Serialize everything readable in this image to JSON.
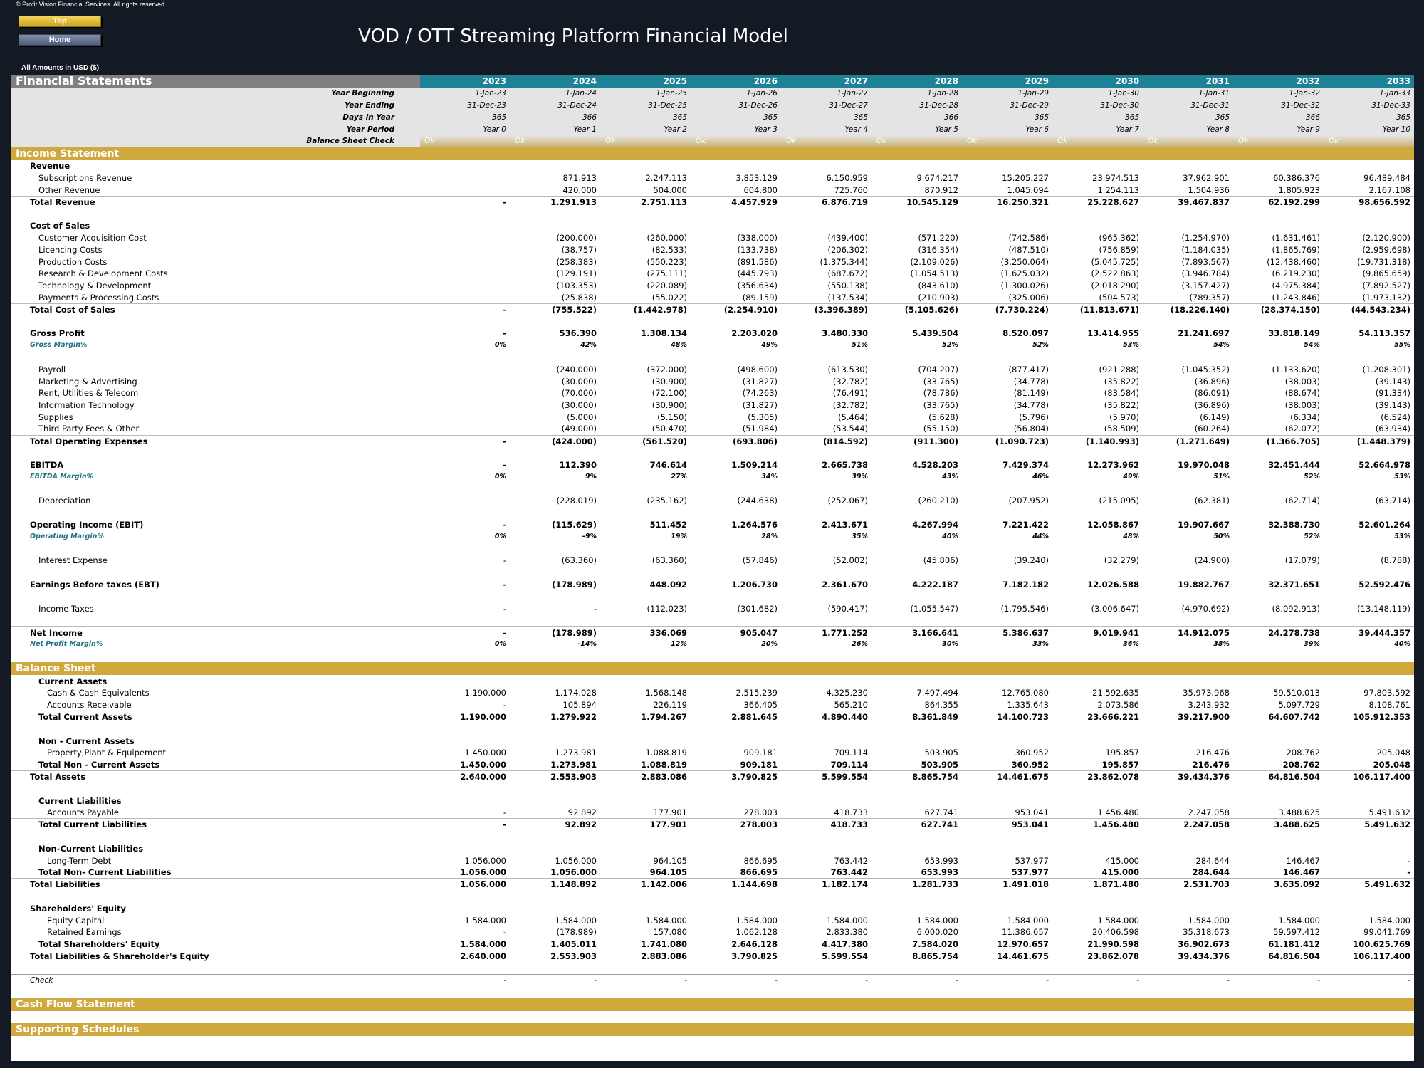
{
  "copyright": "© Profit Vision Financial Services. All rights reserved.",
  "nav": {
    "top": "Top",
    "home": "Home"
  },
  "title": "VOD / OTT Streaming Platform Financial Model",
  "amounts_note": "All Amounts in  USD ($)",
  "sheet_title": "Financial Statements",
  "years": [
    "2023",
    "2024",
    "2025",
    "2026",
    "2027",
    "2028",
    "2029",
    "2030",
    "2031",
    "2032",
    "2033"
  ],
  "meta": {
    "year_beginning": {
      "label": "Year Beginning",
      "values": [
        "1-Jan-23",
        "1-Jan-24",
        "1-Jan-25",
        "1-Jan-26",
        "1-Jan-27",
        "1-Jan-28",
        "1-Jan-29",
        "1-Jan-30",
        "1-Jan-31",
        "1-Jan-32",
        "1-Jan-33"
      ]
    },
    "year_ending": {
      "label": "Year Ending",
      "values": [
        "31-Dec-23",
        "31-Dec-24",
        "31-Dec-25",
        "31-Dec-26",
        "31-Dec-27",
        "31-Dec-28",
        "31-Dec-29",
        "31-Dec-30",
        "31-Dec-31",
        "31-Dec-32",
        "31-Dec-33"
      ]
    },
    "days_in_year": {
      "label": "Days in Year",
      "values": [
        "365",
        "366",
        "365",
        "365",
        "365",
        "366",
        "365",
        "365",
        "365",
        "366",
        "365"
      ]
    },
    "year_period": {
      "label": "Year Period",
      "values": [
        "Year 0",
        "Year 1",
        "Year 2",
        "Year 3",
        "Year 4",
        "Year 5",
        "Year 6",
        "Year 7",
        "Year 8",
        "Year 9",
        "Year 10"
      ]
    },
    "balance_check": {
      "label": "Balance Sheet Check",
      "values": [
        "Ok",
        "Ok",
        "Ok",
        "Ok",
        "Ok",
        "Ok",
        "Ok",
        "Ok",
        "Ok",
        "Ok",
        "Ok"
      ]
    }
  },
  "rows": [
    {
      "kind": "section",
      "label": "Income Statement"
    },
    {
      "kind": "group",
      "label": "Revenue"
    },
    {
      "kind": "item",
      "label": "Subscriptions Revenue",
      "values": [
        "",
        "871.913",
        "2.247.113",
        "3.853.129",
        "6.150.959",
        "9.674.217",
        "15.205.227",
        "23.974.513",
        "37.962.901",
        "60.386.376",
        "96.489.484"
      ]
    },
    {
      "kind": "item",
      "label": "Other Revenue",
      "values": [
        "",
        "420.000",
        "504.000",
        "604.800",
        "725.760",
        "870.912",
        "1.045.094",
        "1.254.113",
        "1.504.936",
        "1.805.923",
        "2.167.108"
      ]
    },
    {
      "kind": "total",
      "label": "Total Revenue",
      "values": [
        "-",
        "1.291.913",
        "2.751.113",
        "4.457.929",
        "6.876.719",
        "10.545.129",
        "16.250.321",
        "25.228.627",
        "39.467.837",
        "62.192.299",
        "98.656.592"
      ]
    },
    {
      "kind": "spacer"
    },
    {
      "kind": "group",
      "label": "Cost of Sales"
    },
    {
      "kind": "item",
      "label": "Customer Acquisition Cost",
      "values": [
        "",
        "(200.000)",
        "(260.000)",
        "(338.000)",
        "(439.400)",
        "(571.220)",
        "(742.586)",
        "(965.362)",
        "(1.254.970)",
        "(1.631.461)",
        "(2.120.900)"
      ]
    },
    {
      "kind": "item",
      "label": "Licencing Costs",
      "values": [
        "",
        "(38.757)",
        "(82.533)",
        "(133.738)",
        "(206.302)",
        "(316.354)",
        "(487.510)",
        "(756.859)",
        "(1.184.035)",
        "(1.865.769)",
        "(2.959.698)"
      ]
    },
    {
      "kind": "item",
      "label": "Production Costs",
      "values": [
        "",
        "(258.383)",
        "(550.223)",
        "(891.586)",
        "(1.375.344)",
        "(2.109.026)",
        "(3.250.064)",
        "(5.045.725)",
        "(7.893.567)",
        "(12.438.460)",
        "(19.731.318)"
      ]
    },
    {
      "kind": "item",
      "label": "Research & Development Costs",
      "values": [
        "",
        "(129.191)",
        "(275.111)",
        "(445.793)",
        "(687.672)",
        "(1.054.513)",
        "(1.625.032)",
        "(2.522.863)",
        "(3.946.784)",
        "(6.219.230)",
        "(9.865.659)"
      ]
    },
    {
      "kind": "item",
      "label": "Technology & Development",
      "values": [
        "",
        "(103.353)",
        "(220.089)",
        "(356.634)",
        "(550.138)",
        "(843.610)",
        "(1.300.026)",
        "(2.018.290)",
        "(3.157.427)",
        "(4.975.384)",
        "(7.892.527)"
      ]
    },
    {
      "kind": "item",
      "label": "Payments & Processing Costs",
      "values": [
        "",
        "(25.838)",
        "(55.022)",
        "(89.159)",
        "(137.534)",
        "(210.903)",
        "(325.006)",
        "(504.573)",
        "(789.357)",
        "(1.243.846)",
        "(1.973.132)"
      ]
    },
    {
      "kind": "total",
      "label": "Total Cost of Sales",
      "values": [
        "-",
        "(755.522)",
        "(1.442.978)",
        "(2.254.910)",
        "(3.396.389)",
        "(5.105.626)",
        "(7.730.224)",
        "(11.813.671)",
        "(18.226.140)",
        "(28.374.150)",
        "(44.543.234)"
      ]
    },
    {
      "kind": "spacer"
    },
    {
      "kind": "total-noline",
      "label": "Gross Profit",
      "values": [
        "-",
        "536.390",
        "1.308.134",
        "2.203.020",
        "3.480.330",
        "5.439.504",
        "8.520.097",
        "13.414.955",
        "21.241.697",
        "33.818.149",
        "54.113.357"
      ]
    },
    {
      "kind": "pct",
      "label": "Gross Margin%",
      "values": [
        "0%",
        "42%",
        "48%",
        "49%",
        "51%",
        "52%",
        "52%",
        "53%",
        "54%",
        "54%",
        "55%"
      ]
    },
    {
      "kind": "spacer"
    },
    {
      "kind": "item",
      "label": "Payroll",
      "values": [
        "",
        "(240.000)",
        "(372.000)",
        "(498.600)",
        "(613.530)",
        "(704.207)",
        "(877.417)",
        "(921.288)",
        "(1.045.352)",
        "(1.133.620)",
        "(1.208.301)"
      ]
    },
    {
      "kind": "item",
      "label": "Marketing & Advertising",
      "values": [
        "",
        "(30.000)",
        "(30.900)",
        "(31.827)",
        "(32.782)",
        "(33.765)",
        "(34.778)",
        "(35.822)",
        "(36.896)",
        "(38.003)",
        "(39.143)"
      ]
    },
    {
      "kind": "item",
      "label": "Rent, Utilities & Telecom",
      "values": [
        "",
        "(70.000)",
        "(72.100)",
        "(74.263)",
        "(76.491)",
        "(78.786)",
        "(81.149)",
        "(83.584)",
        "(86.091)",
        "(88.674)",
        "(91.334)"
      ]
    },
    {
      "kind": "item",
      "label": "Information Technology",
      "values": [
        "",
        "(30.000)",
        "(30.900)",
        "(31.827)",
        "(32.782)",
        "(33.765)",
        "(34.778)",
        "(35.822)",
        "(36.896)",
        "(38.003)",
        "(39.143)"
      ]
    },
    {
      "kind": "item",
      "label": "Supplies",
      "values": [
        "",
        "(5.000)",
        "(5.150)",
        "(5.305)",
        "(5.464)",
        "(5.628)",
        "(5.796)",
        "(5.970)",
        "(6.149)",
        "(6.334)",
        "(6.524)"
      ]
    },
    {
      "kind": "item",
      "label": "Third Party Fees & Other",
      "values": [
        "",
        "(49.000)",
        "(50.470)",
        "(51.984)",
        "(53.544)",
        "(55.150)",
        "(56.804)",
        "(58.509)",
        "(60.264)",
        "(62.072)",
        "(63.934)"
      ]
    },
    {
      "kind": "total",
      "label": "Total Operating Expenses",
      "values": [
        "-",
        "(424.000)",
        "(561.520)",
        "(693.806)",
        "(814.592)",
        "(911.300)",
        "(1.090.723)",
        "(1.140.993)",
        "(1.271.649)",
        "(1.366.705)",
        "(1.448.379)"
      ]
    },
    {
      "kind": "spacer"
    },
    {
      "kind": "total-noline",
      "label": "EBITDA",
      "values": [
        "-",
        "112.390",
        "746.614",
        "1.509.214",
        "2.665.738",
        "4.528.203",
        "7.429.374",
        "12.273.962",
        "19.970.048",
        "32.451.444",
        "52.664.978"
      ]
    },
    {
      "kind": "pct",
      "label": "EBITDA Margin%",
      "values": [
        "0%",
        "9%",
        "27%",
        "34%",
        "39%",
        "43%",
        "46%",
        "49%",
        "51%",
        "52%",
        "53%"
      ]
    },
    {
      "kind": "spacer"
    },
    {
      "kind": "item",
      "label": "Depreciation",
      "values": [
        "",
        "(228.019)",
        "(235.162)",
        "(244.638)",
        "(252.067)",
        "(260.210)",
        "(207.952)",
        "(215.095)",
        "(62.381)",
        "(62.714)",
        "(63.714)"
      ]
    },
    {
      "kind": "spacer"
    },
    {
      "kind": "total-noline",
      "label": "Operating Income (EBIT)",
      "values": [
        "-",
        "(115.629)",
        "511.452",
        "1.264.576",
        "2.413.671",
        "4.267.994",
        "7.221.422",
        "12.058.867",
        "19.907.667",
        "32.388.730",
        "52.601.264"
      ]
    },
    {
      "kind": "pct",
      "label": "Operating Margin%",
      "values": [
        "0%",
        "-9%",
        "19%",
        "28%",
        "35%",
        "40%",
        "44%",
        "48%",
        "50%",
        "52%",
        "53%"
      ]
    },
    {
      "kind": "spacer"
    },
    {
      "kind": "item",
      "label": "Interest Expense",
      "values": [
        "-",
        "(63.360)",
        "(63.360)",
        "(57.846)",
        "(52.002)",
        "(45.806)",
        "(39.240)",
        "(32.279)",
        "(24.900)",
        "(17.079)",
        "(8.788)"
      ]
    },
    {
      "kind": "spacer"
    },
    {
      "kind": "total-noline",
      "label": "Earnings Before taxes (EBT)",
      "values": [
        "-",
        "(178.989)",
        "448.092",
        "1.206.730",
        "2.361.670",
        "4.222.187",
        "7.182.182",
        "12.026.588",
        "19.882.767",
        "32.371.651",
        "52.592.476"
      ]
    },
    {
      "kind": "spacer"
    },
    {
      "kind": "item",
      "label": "Income Taxes",
      "values": [
        "-",
        "-",
        "(112.023)",
        "(301.682)",
        "(590.417)",
        "(1.055.547)",
        "(1.795.546)",
        "(3.006.647)",
        "(4.970.692)",
        "(8.092.913)",
        "(13.148.119)"
      ]
    },
    {
      "kind": "spacer"
    },
    {
      "kind": "total",
      "label": "Net Income",
      "values": [
        "-",
        "(178.989)",
        "336.069",
        "905.047",
        "1.771.252",
        "3.166.641",
        "5.386.637",
        "9.019.941",
        "14.912.075",
        "24.278.738",
        "39.444.357"
      ]
    },
    {
      "kind": "pct",
      "label": "Net Profit Margin%",
      "values": [
        "0%",
        "-14%",
        "12%",
        "20%",
        "26%",
        "30%",
        "33%",
        "36%",
        "38%",
        "39%",
        "40%"
      ]
    },
    {
      "kind": "spacer"
    },
    {
      "kind": "section",
      "label": "Balance Sheet"
    },
    {
      "kind": "subgroup",
      "label": "Current Assets"
    },
    {
      "kind": "item2",
      "label": "Cash & Cash Equivalents",
      "values": [
        "1.190.000",
        "1.174.028",
        "1.568.148",
        "2.515.239",
        "4.325.230",
        "7.497.494",
        "12.765.080",
        "21.592.635",
        "35.973.968",
        "59.510.013",
        "97.803.592"
      ]
    },
    {
      "kind": "item2",
      "label": "Accounts Receivable",
      "values": [
        "-",
        "105.894",
        "226.119",
        "366.405",
        "565.210",
        "864.355",
        "1.335.643",
        "2.073.586",
        "3.243.932",
        "5.097.729",
        "8.108.761"
      ]
    },
    {
      "kind": "subtotal-line",
      "label": "Total Current Assets",
      "values": [
        "1.190.000",
        "1.279.922",
        "1.794.267",
        "2.881.645",
        "4.890.440",
        "8.361.849",
        "14.100.723",
        "23.666.221",
        "39.217.900",
        "64.607.742",
        "105.912.353"
      ]
    },
    {
      "kind": "spacer"
    },
    {
      "kind": "subgroup",
      "label": "Non - Current Assets"
    },
    {
      "kind": "item2",
      "label": "Property,Plant & Equipement",
      "values": [
        "1.450.000",
        "1.273.981",
        "1.088.819",
        "909.181",
        "709.114",
        "503.905",
        "360.952",
        "195.857",
        "216.476",
        "208.762",
        "205.048"
      ]
    },
    {
      "kind": "subtotal",
      "label": "Total Non - Current Assets",
      "values": [
        "1.450.000",
        "1.273.981",
        "1.088.819",
        "909.181",
        "709.114",
        "503.905",
        "360.952",
        "195.857",
        "216.476",
        "208.762",
        "205.048"
      ]
    },
    {
      "kind": "total",
      "label": "Total Assets",
      "values": [
        "2.640.000",
        "2.553.903",
        "2.883.086",
        "3.790.825",
        "5.599.554",
        "8.865.754",
        "14.461.675",
        "23.862.078",
        "39.434.376",
        "64.816.504",
        "106.117.400"
      ]
    },
    {
      "kind": "spacer"
    },
    {
      "kind": "subgroup",
      "label": "Current Liabilities"
    },
    {
      "kind": "item2",
      "label": "Accounts Payable",
      "values": [
        "-",
        "92.892",
        "177.901",
        "278.003",
        "418.733",
        "627.741",
        "953.041",
        "1.456.480",
        "2.247.058",
        "3.488.625",
        "5.491.632"
      ]
    },
    {
      "kind": "subtotal-line",
      "label": "Total Current Liabilities",
      "values": [
        "-",
        "92.892",
        "177.901",
        "278.003",
        "418.733",
        "627.741",
        "953.041",
        "1.456.480",
        "2.247.058",
        "3.488.625",
        "5.491.632"
      ]
    },
    {
      "kind": "spacer"
    },
    {
      "kind": "subgroup",
      "label": "Non-Current Liabilities"
    },
    {
      "kind": "item2",
      "label": "Long-Term Debt",
      "values": [
        "1.056.000",
        "1.056.000",
        "964.105",
        "866.695",
        "763.442",
        "653.993",
        "537.977",
        "415.000",
        "284.644",
        "146.467",
        "-"
      ]
    },
    {
      "kind": "subtotal",
      "label": "Total Non- Current Liabilities",
      "values": [
        "1.056.000",
        "1.056.000",
        "964.105",
        "866.695",
        "763.442",
        "653.993",
        "537.977",
        "415.000",
        "284.644",
        "146.467",
        "-"
      ]
    },
    {
      "kind": "total",
      "label": "Total Liabilities",
      "values": [
        "1.056.000",
        "1.148.892",
        "1.142.006",
        "1.144.698",
        "1.182.174",
        "1.281.733",
        "1.491.018",
        "1.871.480",
        "2.531.703",
        "3.635.092",
        "5.491.632"
      ]
    },
    {
      "kind": "spacer"
    },
    {
      "kind": "group",
      "label": "Shareholders' Equity"
    },
    {
      "kind": "item2",
      "label": "Equity Capital",
      "values": [
        "1.584.000",
        "1.584.000",
        "1.584.000",
        "1.584.000",
        "1.584.000",
        "1.584.000",
        "1.584.000",
        "1.584.000",
        "1.584.000",
        "1.584.000",
        "1.584.000"
      ]
    },
    {
      "kind": "item2",
      "label": "Retained Earnings",
      "values": [
        "-",
        "(178.989)",
        "157.080",
        "1.062.128",
        "2.833.380",
        "6.000.020",
        "11.386.657",
        "20.406.598",
        "35.318.673",
        "59.597.412",
        "99.041.769"
      ]
    },
    {
      "kind": "subtotal-line",
      "label": "Total Shareholders' Equity",
      "values": [
        "1.584.000",
        "1.405.011",
        "1.741.080",
        "2.646.128",
        "4.417.380",
        "7.584.020",
        "12.970.657",
        "21.990.598",
        "36.902.673",
        "61.181.412",
        "100.625.769"
      ]
    },
    {
      "kind": "total-noline",
      "label": "Total Liabilities & Shareholder's Equity",
      "values": [
        "2.640.000",
        "2.553.903",
        "2.883.086",
        "3.790.825",
        "5.599.554",
        "8.865.754",
        "14.461.675",
        "23.862.078",
        "39.434.376",
        "64.816.504",
        "106.117.400"
      ]
    },
    {
      "kind": "spacer-rule"
    },
    {
      "kind": "check",
      "label": "Check",
      "values": [
        "-",
        "-",
        "-",
        "-",
        "-",
        "-",
        "-",
        "-",
        "-",
        "-",
        "-"
      ]
    },
    {
      "kind": "spacer"
    },
    {
      "kind": "section",
      "label": "Cash Flow Statement"
    },
    {
      "kind": "spacer"
    },
    {
      "kind": "section",
      "label": "Supporting Schedules"
    }
  ]
}
